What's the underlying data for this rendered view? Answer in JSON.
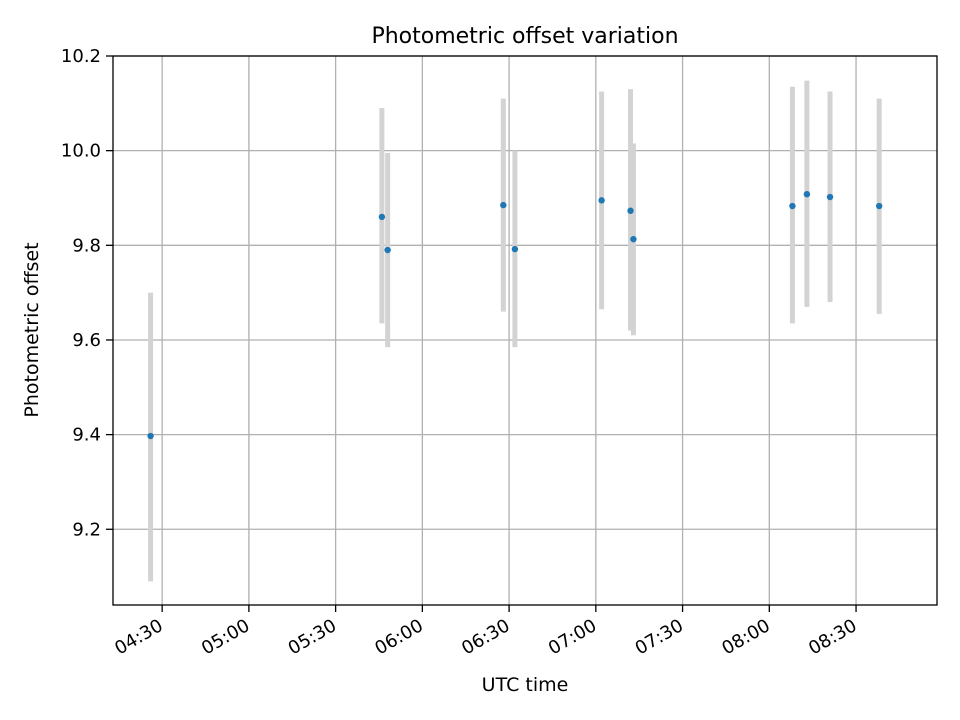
{
  "chart_data": {
    "type": "scatter",
    "title": "Photometric offset variation",
    "xlabel": "UTC time",
    "ylabel": "Photometric offset",
    "grid": true,
    "x_tick_labels": [
      "04:30",
      "05:00",
      "05:30",
      "06:00",
      "06:30",
      "07:00",
      "07:30",
      "08:00",
      "08:30"
    ],
    "x_range": [
      "04:13",
      "08:58"
    ],
    "ylim": [
      9.04,
      10.2
    ],
    "y_ticks": [
      9.2,
      9.4,
      9.6,
      9.8,
      10.0,
      10.2
    ],
    "y_tick_labels": [
      "9.2",
      "9.4",
      "9.6",
      "9.8",
      "10.0",
      "10.2"
    ],
    "marker_color": "#1f77b4",
    "errorbar_color": "#d3d3d3",
    "points": [
      {
        "time": "04:26",
        "y": 9.397,
        "y_low": 9.09,
        "y_high": 9.7
      },
      {
        "time": "05:46",
        "y": 9.86,
        "y_low": 9.635,
        "y_high": 10.09
      },
      {
        "time": "05:48",
        "y": 9.79,
        "y_low": 9.585,
        "y_high": 9.995
      },
      {
        "time": "06:28",
        "y": 9.885,
        "y_low": 9.66,
        "y_high": 10.11
      },
      {
        "time": "06:32",
        "y": 9.792,
        "y_low": 9.585,
        "y_high": 10.0
      },
      {
        "time": "07:02",
        "y": 9.895,
        "y_low": 9.665,
        "y_high": 10.125
      },
      {
        "time": "07:12",
        "y": 9.873,
        "y_low": 9.62,
        "y_high": 10.13
      },
      {
        "time": "07:13",
        "y": 9.813,
        "y_low": 9.61,
        "y_high": 10.015
      },
      {
        "time": "08:08",
        "y": 9.883,
        "y_low": 9.635,
        "y_high": 10.135
      },
      {
        "time": "08:13",
        "y": 9.908,
        "y_low": 9.67,
        "y_high": 10.148
      },
      {
        "time": "08:21",
        "y": 9.902,
        "y_low": 9.68,
        "y_high": 10.125
      },
      {
        "time": "08:38",
        "y": 9.883,
        "y_low": 9.655,
        "y_high": 10.11
      }
    ]
  }
}
